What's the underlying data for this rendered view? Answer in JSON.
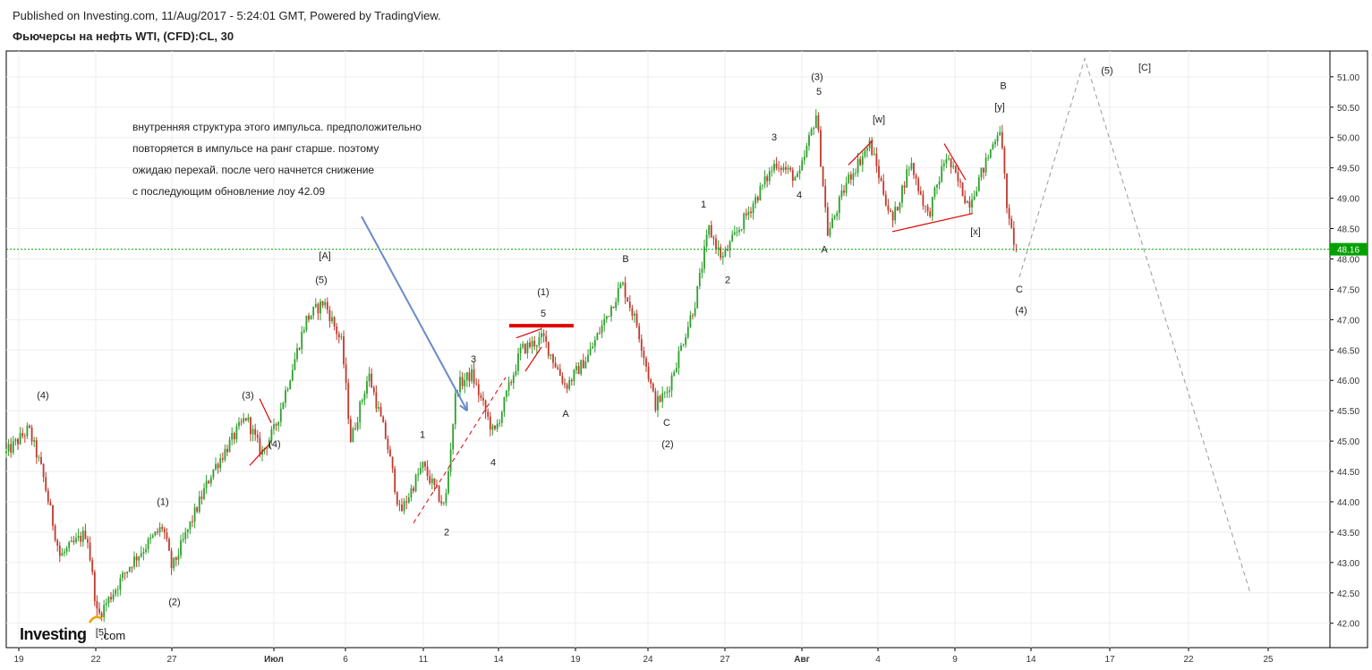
{
  "header": {
    "published": "Published on Investing.com, 11/Aug/2017 - 5:24:01 GMT, Powered by TradingView.",
    "title": "Фьючерсы на нефть WTI, (CFD):CL, 30"
  },
  "logo": {
    "main": "Investing",
    "suffix": ".com"
  },
  "note": [
    "внутренняя структура этого импульса. предположительно",
    "повторяется в импульсе на ранг старше. поэтому",
    "ожидаю перехай. после чего начнется снижение",
    "с последующим обновление лоу 42.09"
  ],
  "colors": {
    "up": "#26a69a",
    "down": "#c0392b",
    "green_candle": "#2ca02c",
    "red_line": "#e00000",
    "price_line": "#00aa00",
    "arrow": "#6a8ac8",
    "forecast": "#999999",
    "price_tag_bg": "#00a000"
  },
  "chart_data": {
    "type": "candlestick",
    "title": "Фьючерсы на нефть WTI, (CFD):CL, 30",
    "ylim": [
      41.8,
      51.3
    ],
    "y_ticks": [
      "42.00",
      "42.50",
      "43.00",
      "43.50",
      "44.00",
      "44.50",
      "45.00",
      "45.50",
      "46.00",
      "46.50",
      "47.00",
      "47.50",
      "48.00",
      "48.50",
      "49.00",
      "49.50",
      "50.00",
      "50.50",
      "51.00"
    ],
    "x_ticks": [
      "19",
      "22",
      "27",
      "Июл",
      "6",
      "11",
      "14",
      "19",
      "24",
      "27",
      "Авг",
      "4",
      "9",
      "14",
      "17",
      "22",
      "25"
    ],
    "last_price": "48.16",
    "price_path": [
      {
        "t": 0,
        "p": 44.8
      },
      {
        "t": 25,
        "p": 45.2
      },
      {
        "t": 40,
        "p": 44.5
      },
      {
        "t": 60,
        "p": 43.1
      },
      {
        "t": 90,
        "p": 43.5
      },
      {
        "t": 102,
        "p": 42.1
      },
      {
        "t": 140,
        "p": 43.0
      },
      {
        "t": 175,
        "p": 43.6
      },
      {
        "t": 185,
        "p": 42.9
      },
      {
        "t": 230,
        "p": 44.5
      },
      {
        "t": 268,
        "p": 45.4
      },
      {
        "t": 285,
        "p": 44.8
      },
      {
        "t": 300,
        "p": 45.2
      },
      {
        "t": 335,
        "p": 47.0
      },
      {
        "t": 355,
        "p": 47.3
      },
      {
        "t": 375,
        "p": 46.6
      },
      {
        "t": 385,
        "p": 45.0
      },
      {
        "t": 405,
        "p": 46.1
      },
      {
        "t": 425,
        "p": 45.0
      },
      {
        "t": 440,
        "p": 43.8
      },
      {
        "t": 465,
        "p": 44.6
      },
      {
        "t": 490,
        "p": 43.9
      },
      {
        "t": 503,
        "p": 45.9
      },
      {
        "t": 520,
        "p": 46.1
      },
      {
        "t": 545,
        "p": 45.1
      },
      {
        "t": 575,
        "p": 46.5
      },
      {
        "t": 600,
        "p": 46.7
      },
      {
        "t": 625,
        "p": 45.9
      },
      {
        "t": 650,
        "p": 46.4
      },
      {
        "t": 688,
        "p": 47.6
      },
      {
        "t": 705,
        "p": 46.9
      },
      {
        "t": 725,
        "p": 45.6
      },
      {
        "t": 738,
        "p": 45.8
      },
      {
        "t": 770,
        "p": 47.3
      },
      {
        "t": 785,
        "p": 48.5
      },
      {
        "t": 800,
        "p": 48.0
      },
      {
        "t": 830,
        "p": 48.8
      },
      {
        "t": 860,
        "p": 49.6
      },
      {
        "t": 885,
        "p": 49.3
      },
      {
        "t": 905,
        "p": 50.4
      },
      {
        "t": 918,
        "p": 48.4
      },
      {
        "t": 940,
        "p": 49.3
      },
      {
        "t": 965,
        "p": 49.9
      },
      {
        "t": 990,
        "p": 48.6
      },
      {
        "t": 1010,
        "p": 49.6
      },
      {
        "t": 1030,
        "p": 48.7
      },
      {
        "t": 1050,
        "p": 49.7
      },
      {
        "t": 1075,
        "p": 48.9
      },
      {
        "t": 1095,
        "p": 49.6
      },
      {
        "t": 1110,
        "p": 50.2
      },
      {
        "t": 1120,
        "p": 48.6
      },
      {
        "t": 1130,
        "p": 48.1
      }
    ],
    "forecast_path": [
      {
        "t": 1132,
        "p": 47.7
      },
      {
        "t": 1205,
        "p": 51.3
      },
      {
        "t": 1390,
        "p": 42.5
      }
    ],
    "labels": [
      {
        "text": "(4)",
        "t": 41,
        "p": 45.7
      },
      {
        "text": "(1)",
        "t": 175,
        "p": 43.95
      },
      {
        "text": "(2)",
        "t": 188,
        "p": 42.3
      },
      {
        "text": "(3)",
        "t": 270,
        "p": 45.7
      },
      {
        "text": "(4)",
        "t": 300,
        "p": 44.9
      },
      {
        "text": "[A]",
        "t": 356,
        "p": 48.0
      },
      {
        "text": "(5)",
        "t": 352,
        "p": 47.6
      },
      {
        "text": "1",
        "t": 465,
        "p": 45.05
      },
      {
        "text": "2",
        "t": 492,
        "p": 43.45
      },
      {
        "text": "3",
        "t": 522,
        "p": 46.3
      },
      {
        "text": "4",
        "t": 544,
        "p": 44.6
      },
      {
        "text": "(1)",
        "t": 600,
        "p": 47.4
      },
      {
        "text": "5",
        "t": 600,
        "p": 47.05
      },
      {
        "text": "A",
        "t": 625,
        "p": 45.4
      },
      {
        "text": "B",
        "t": 692,
        "p": 47.95
      },
      {
        "text": "C",
        "t": 738,
        "p": 45.25
      },
      {
        "text": "(2)",
        "t": 739,
        "p": 44.9
      },
      {
        "text": "1",
        "t": 779,
        "p": 48.85
      },
      {
        "text": "2",
        "t": 806,
        "p": 47.6
      },
      {
        "text": "3",
        "t": 858,
        "p": 49.95
      },
      {
        "text": "4",
        "t": 886,
        "p": 49.0
      },
      {
        "text": "(3)",
        "t": 906,
        "p": 50.95
      },
      {
        "text": "5",
        "t": 908,
        "p": 50.7
      },
      {
        "text": "A",
        "t": 914,
        "p": 48.1
      },
      {
        "text": "[w]",
        "t": 975,
        "p": 50.25
      },
      {
        "text": "[x]",
        "t": 1083,
        "p": 48.4
      },
      {
        "text": "[y]",
        "t": 1110,
        "p": 50.45
      },
      {
        "text": "B",
        "t": 1114,
        "p": 50.8
      },
      {
        "text": "C",
        "t": 1132,
        "p": 47.45
      },
      {
        "text": "(4)",
        "t": 1134,
        "p": 47.1
      },
      {
        "text": "(5)",
        "t": 1230,
        "p": 51.05
      },
      {
        "text": "[C]",
        "t": 1272,
        "p": 51.1
      },
      {
        "text": "[5]",
        "t": 106,
        "p": 41.8
      }
    ],
    "trendlines": [
      {
        "pts": [
          {
            "t": 283,
            "p": 45.7
          },
          {
            "t": 296,
            "p": 45.3
          }
        ]
      },
      {
        "pts": [
          {
            "t": 272,
            "p": 44.6
          },
          {
            "t": 294,
            "p": 44.95
          }
        ]
      },
      {
        "pts": [
          {
            "t": 570,
            "p": 46.7
          },
          {
            "t": 598,
            "p": 46.85
          }
        ]
      },
      {
        "pts": [
          {
            "t": 580,
            "p": 46.15
          },
          {
            "t": 598,
            "p": 46.55
          }
        ]
      },
      {
        "pts": [
          {
            "t": 941,
            "p": 49.55
          },
          {
            "t": 968,
            "p": 49.95
          }
        ]
      },
      {
        "pts": [
          {
            "t": 1048,
            "p": 49.9
          },
          {
            "t": 1072,
            "p": 49.3
          }
        ]
      },
      {
        "pts": [
          {
            "t": 990,
            "p": 48.45
          },
          {
            "t": 1080,
            "p": 48.75
          }
        ]
      }
    ],
    "dashed_channel": {
      "pts": [
        {
          "t": 455,
          "p": 43.65
        },
        {
          "t": 558,
          "p": 46.05
        }
      ]
    },
    "red_bar": {
      "from": 562,
      "to": 634,
      "p": 46.9
    },
    "arrow": {
      "from": {
        "t": 397,
        "p": 48.7
      },
      "to": {
        "t": 515,
        "p": 45.5
      }
    }
  }
}
